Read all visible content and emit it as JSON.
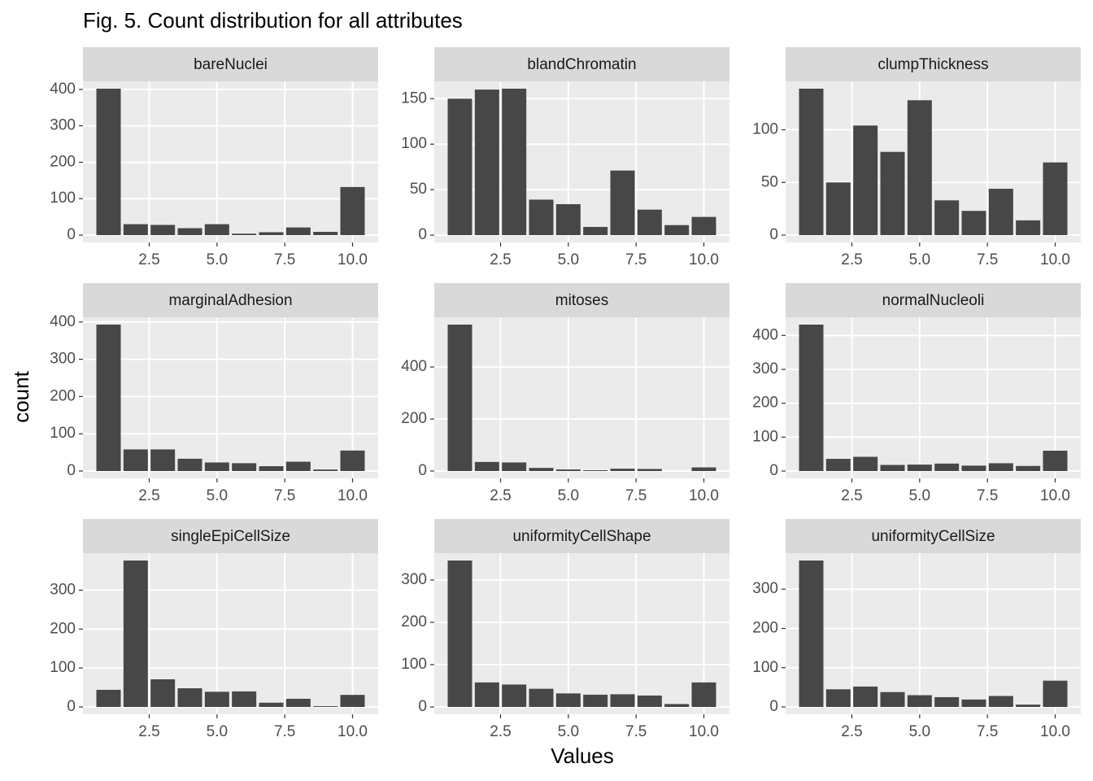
{
  "title": "Fig. 5. Count distribution for all attributes",
  "x_label": "Values",
  "y_label": "count",
  "chart_data": [
    {
      "type": "bar",
      "title": "bareNuclei",
      "x": [
        1,
        2,
        3,
        4,
        5,
        6,
        7,
        8,
        9,
        10
      ],
      "values": [
        402,
        30,
        28,
        19,
        30,
        4,
        8,
        21,
        9,
        132
      ],
      "color": "#474747",
      "xlim": [
        0.055,
        10.945
      ],
      "xticks": [
        2.5,
        {
          "value": 5,
          "label": "5.0"
        },
        7.5,
        {
          "value": 10,
          "label": "10.0"
        }
      ],
      "ylim": [
        -20.1,
        422.1
      ],
      "yticks": [
        0,
        100,
        200,
        300,
        400
      ],
      "grid": true
    },
    {
      "type": "bar",
      "title": "blandChromatin",
      "x": [
        1,
        2,
        3,
        4,
        5,
        6,
        7,
        8,
        9,
        10
      ],
      "values": [
        150,
        160,
        161,
        39,
        34,
        9,
        71,
        28,
        11,
        20
      ],
      "color": "#474747",
      "xlim": [
        0.055,
        10.945
      ],
      "xticks": [
        2.5,
        {
          "value": 5,
          "label": "5.0"
        },
        7.5,
        {
          "value": 10,
          "label": "10.0"
        }
      ],
      "ylim": [
        -8.05,
        169.05
      ],
      "yticks": [
        0,
        50,
        100,
        150
      ],
      "grid": true
    },
    {
      "type": "bar",
      "title": "clumpThickness",
      "x": [
        1,
        2,
        3,
        4,
        5,
        6,
        7,
        8,
        9,
        10
      ],
      "values": [
        139,
        50,
        104,
        79,
        128,
        33,
        23,
        44,
        14,
        69
      ],
      "color": "#474747",
      "xlim": [
        0.055,
        10.945
      ],
      "xticks": [
        2.5,
        {
          "value": 5,
          "label": "5.0"
        },
        7.5,
        {
          "value": 10,
          "label": "10.0"
        }
      ],
      "ylim": [
        -6.95,
        145.95
      ],
      "yticks": [
        0,
        50,
        100
      ],
      "grid": true
    },
    {
      "type": "bar",
      "title": "marginalAdhesion",
      "x": [
        1,
        2,
        3,
        4,
        5,
        6,
        7,
        8,
        9,
        10
      ],
      "values": [
        393,
        58,
        58,
        33,
        23,
        21,
        13,
        25,
        4,
        55
      ],
      "color": "#474747",
      "xlim": [
        0.055,
        10.945
      ],
      "xticks": [
        2.5,
        {
          "value": 5,
          "label": "5.0"
        },
        7.5,
        {
          "value": 10,
          "label": "10.0"
        }
      ],
      "ylim": [
        -19.65,
        412.65
      ],
      "yticks": [
        0,
        100,
        200,
        300,
        400
      ],
      "grid": true
    },
    {
      "type": "bar",
      "title": "mitoses",
      "x": [
        1,
        2,
        3,
        4,
        5,
        6,
        7,
        8,
        10
      ],
      "values": [
        563,
        35,
        33,
        12,
        6,
        3,
        9,
        8,
        14
      ],
      "color": "#474747",
      "xlim": [
        0.055,
        10.945
      ],
      "xticks": [
        2.5,
        {
          "value": 5,
          "label": "5.0"
        },
        7.5,
        {
          "value": 10,
          "label": "10.0"
        }
      ],
      "ylim": [
        -28.15,
        591.15
      ],
      "yticks": [
        0,
        200,
        400
      ],
      "grid": true
    },
    {
      "type": "bar",
      "title": "normalNucleoli",
      "x": [
        1,
        2,
        3,
        4,
        5,
        6,
        7,
        8,
        9,
        10
      ],
      "values": [
        432,
        36,
        42,
        18,
        19,
        22,
        16,
        23,
        15,
        60
      ],
      "color": "#474747",
      "xlim": [
        0.055,
        10.945
      ],
      "xticks": [
        2.5,
        {
          "value": 5,
          "label": "5.0"
        },
        7.5,
        {
          "value": 10,
          "label": "10.0"
        }
      ],
      "ylim": [
        -21.6,
        453.6
      ],
      "yticks": [
        0,
        100,
        200,
        300,
        400
      ],
      "grid": true
    },
    {
      "type": "bar",
      "title": "singleEpiCellSize",
      "x": [
        1,
        2,
        3,
        4,
        5,
        6,
        7,
        8,
        9,
        10
      ],
      "values": [
        44,
        376,
        71,
        48,
        39,
        40,
        11,
        21,
        2,
        31
      ],
      "color": "#474747",
      "xlim": [
        0.055,
        10.945
      ],
      "xticks": [
        2.5,
        {
          "value": 5,
          "label": "5.0"
        },
        7.5,
        {
          "value": 10,
          "label": "10.0"
        }
      ],
      "ylim": [
        -18.8,
        394.8
      ],
      "yticks": [
        0,
        100,
        200,
        300
      ],
      "grid": true
    },
    {
      "type": "bar",
      "title": "uniformityCellShape",
      "x": [
        1,
        2,
        3,
        4,
        5,
        6,
        7,
        8,
        9,
        10
      ],
      "values": [
        346,
        58,
        53,
        43,
        32,
        29,
        30,
        27,
        7,
        58
      ],
      "color": "#474747",
      "xlim": [
        0.055,
        10.945
      ],
      "xticks": [
        2.5,
        {
          "value": 5,
          "label": "5.0"
        },
        7.5,
        {
          "value": 10,
          "label": "10.0"
        }
      ],
      "ylim": [
        -17.3,
        363.3
      ],
      "yticks": [
        0,
        100,
        200,
        300
      ],
      "grid": true
    },
    {
      "type": "bar",
      "title": "uniformityCellSize",
      "x": [
        1,
        2,
        3,
        4,
        5,
        6,
        7,
        8,
        9,
        10
      ],
      "values": [
        373,
        45,
        52,
        38,
        30,
        25,
        19,
        28,
        6,
        67
      ],
      "color": "#474747",
      "xlim": [
        0.055,
        10.945
      ],
      "xticks": [
        2.5,
        {
          "value": 5,
          "label": "5.0"
        },
        7.5,
        {
          "value": 10,
          "label": "10.0"
        }
      ],
      "ylim": [
        -18.65,
        391.65
      ],
      "yticks": [
        0,
        100,
        200,
        300
      ],
      "grid": true
    }
  ]
}
